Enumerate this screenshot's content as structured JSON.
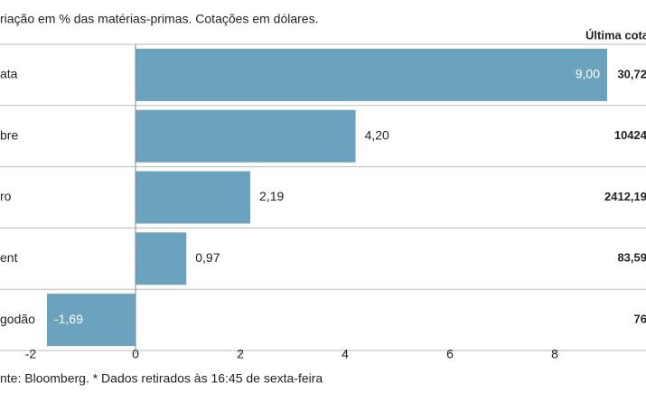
{
  "chart_data": {
    "type": "hbar",
    "title": "riação em % das matérias-primas. Cotações em dólares.",
    "categories": [
      "ata",
      "bre",
      "ro",
      "ent",
      "godão"
    ],
    "values": [
      9.0,
      4.2,
      2.19,
      0.97,
      -1.69
    ],
    "value_labels": [
      "9,00",
      "4,20",
      "2,19",
      "0,97",
      "-1,69"
    ],
    "color": "#6ba3bf",
    "xlim": [
      -2.5,
      9.5
    ],
    "xticks": [
      -2,
      0,
      2,
      4,
      6,
      8
    ],
    "last_quote_header": "Última cotaç",
    "last_quote": [
      "30,72",
      "10424",
      "2412,19",
      "83,59",
      "76"
    ],
    "footer": "nte: Bloomberg.  * Dados retirados às 16:45 de sexta-feira"
  }
}
